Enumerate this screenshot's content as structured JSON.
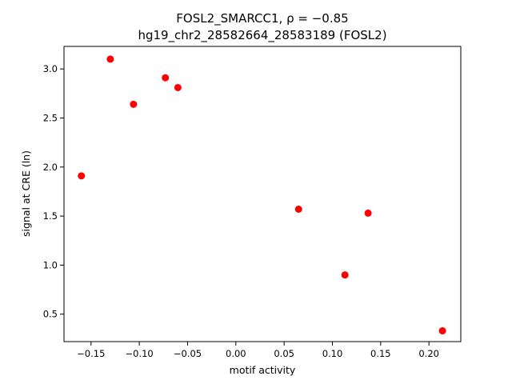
{
  "chart_data": {
    "type": "scatter",
    "title_line1": "FOSL2_SMARCC1, ρ = −0.85",
    "title_line2": "hg19_chr2_28582664_28583189 (FOSL2)",
    "xlabel": "motif activity",
    "ylabel": "signal at CRE (ln)",
    "xlim": [
      -0.178,
      0.233
    ],
    "ylim": [
      0.22,
      3.23
    ],
    "xticks": [
      -0.15,
      -0.1,
      -0.05,
      0.0,
      0.05,
      0.1,
      0.15,
      0.2
    ],
    "xtick_labels": [
      "−0.15",
      "−0.10",
      "−0.05",
      "0.00",
      "0.05",
      "0.10",
      "0.15",
      "0.20"
    ],
    "yticks": [
      0.5,
      1.0,
      1.5,
      2.0,
      2.5,
      3.0
    ],
    "ytick_labels": [
      "0.5",
      "1.0",
      "1.5",
      "2.0",
      "2.5",
      "3.0"
    ],
    "point_color": "#ff0000",
    "points": [
      {
        "x": -0.16,
        "y": 1.91
      },
      {
        "x": -0.13,
        "y": 3.1
      },
      {
        "x": -0.106,
        "y": 2.64
      },
      {
        "x": -0.073,
        "y": 2.91
      },
      {
        "x": -0.06,
        "y": 2.81
      },
      {
        "x": 0.065,
        "y": 1.57
      },
      {
        "x": 0.113,
        "y": 0.9
      },
      {
        "x": 0.137,
        "y": 1.53
      },
      {
        "x": 0.214,
        "y": 0.33
      }
    ]
  }
}
